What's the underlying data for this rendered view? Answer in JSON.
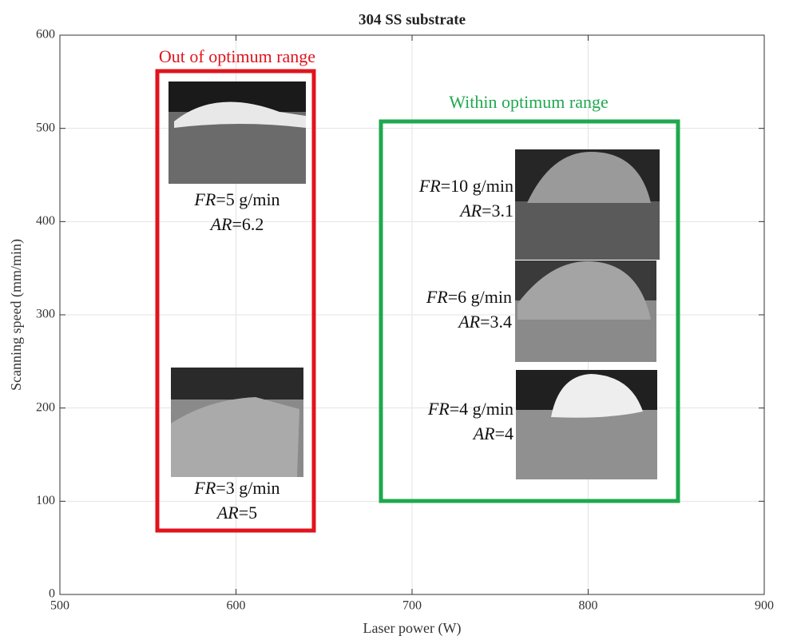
{
  "chart_data": {
    "type": "annotated-axes",
    "title": "304 SS substrate",
    "x_label": "Laser power (W)",
    "y_label": "Scanning speed (mm/min)",
    "xlim": [
      500,
      900
    ],
    "xticks": [
      500,
      600,
      700,
      800,
      900
    ],
    "ylim": [
      0,
      600
    ],
    "yticks": [
      0,
      100,
      200,
      300,
      400,
      500,
      600
    ],
    "grid": true,
    "annotations": {
      "out_label": "Out of optimum range",
      "within_label": "Within optimum range",
      "items": [
        {
          "fr_symbol": "FR",
          "fr_text": "=5 g/min",
          "ar_symbol": "AR",
          "ar_text": "=6.2"
        },
        {
          "fr_symbol": "FR",
          "fr_text": "=3 g/min",
          "ar_symbol": "AR",
          "ar_text": "=5"
        },
        {
          "fr_symbol": "FR",
          "fr_text": "=10 g/min",
          "ar_symbol": "AR",
          "ar_text": "=3.1"
        },
        {
          "fr_symbol": "FR",
          "fr_text": "=6 g/min",
          "ar_symbol": "AR",
          "ar_text": "=3.4"
        },
        {
          "fr_symbol": "FR",
          "fr_text": "=4 g/min",
          "ar_symbol": "AR",
          "ar_text": "=4"
        }
      ]
    }
  }
}
